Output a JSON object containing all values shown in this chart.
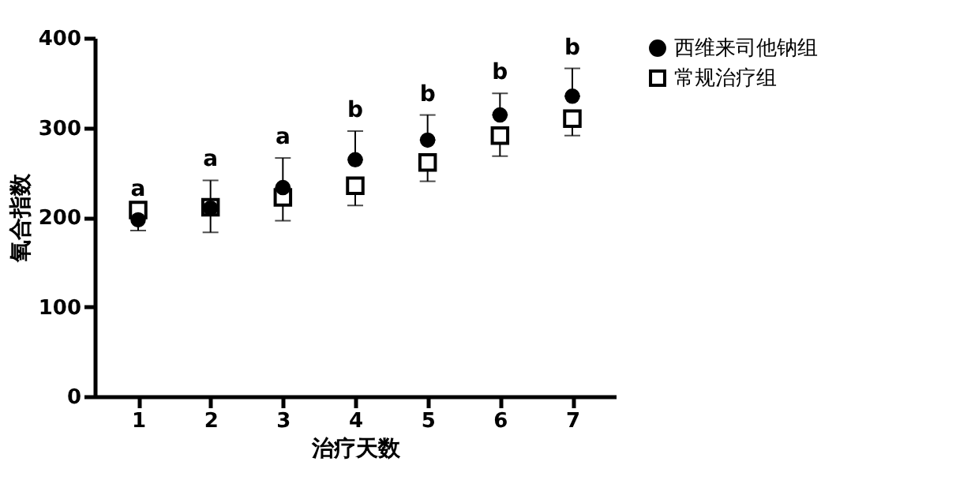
{
  "chart_data": {
    "type": "scatter",
    "xlabel": "治疗天数",
    "ylabel": "氧合指数",
    "categories": [
      "1",
      "2",
      "3",
      "4",
      "5",
      "6",
      "7"
    ],
    "series": [
      {
        "name": "西维来司他钠组",
        "color": "#000000",
        "marker": "circle",
        "values": [
          197,
          210,
          233,
          264,
          286,
          314,
          335
        ],
        "errors": [
          null,
          [
            210,
            241
          ],
          [
            233,
            266
          ],
          [
            264,
            296
          ],
          [
            286,
            314
          ],
          [
            314,
            338
          ],
          [
            335,
            366
          ]
        ]
      },
      {
        "name": "常规治疗组",
        "color": "#000000",
        "marker": "square",
        "values": [
          208,
          211,
          222,
          235,
          261,
          291,
          310
        ],
        "errors": [
          [
            185,
            208
          ],
          [
            183,
            208
          ],
          [
            196,
            222
          ],
          [
            213,
            235
          ],
          [
            240,
            261
          ],
          [
            268,
            291
          ],
          [
            291,
            310
          ]
        ]
      }
    ],
    "annotations": [
      "a",
      "a",
      "a",
      "b",
      "b",
      "b",
      "b"
    ],
    "ylim": [
      0,
      400
    ],
    "yticks": [
      0,
      100,
      200,
      300,
      400
    ],
    "grid": false,
    "legend": "right"
  }
}
